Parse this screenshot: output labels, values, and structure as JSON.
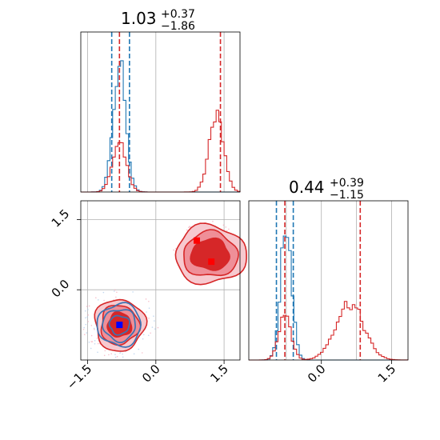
{
  "chart_data": [
    {
      "type": "histogram",
      "panel": "top-left",
      "title": {
        "value": "1.03",
        "plus": "+0.37",
        "minus": "−1.86"
      },
      "xlim": [
        -1.65,
        1.85
      ],
      "grid": true,
      "series": [
        {
          "name": "",
          "color": "#1f77b4",
          "center": -0.8,
          "sd": 0.14,
          "peak": 0.86,
          "quantiles": [
            -0.97,
            -0.58
          ]
        },
        {
          "name": "",
          "color": "#d62728",
          "components": [
            {
              "center": -0.8,
              "sd": 0.15,
              "peak": 0.33
            },
            {
              "center": 1.33,
              "sd": 0.16,
              "peak": 0.52
            }
          ],
          "quantiles": [
            -0.8,
            1.42
          ]
        }
      ]
    },
    {
      "type": "contour",
      "panel": "bottom-left",
      "xlim": [
        -1.65,
        1.85
      ],
      "ylim": [
        -1.5,
        1.9
      ],
      "xticks": [
        "−1.5",
        "0.0",
        "1.5"
      ],
      "yticks": [
        "1.5",
        "0.0"
      ],
      "grid": true,
      "series": [
        {
          "name": "",
          "color": "#1f77b4",
          "center": [
            -0.8,
            -0.75
          ],
          "marker": [
            -0.8,
            -0.75
          ]
        },
        {
          "name": "",
          "color": "#d62728",
          "centers": [
            [
              -0.8,
              -0.75
            ],
            [
              1.2,
              0.6
            ]
          ],
          "markers": [
            [
              0.9,
              1.05
            ],
            [
              1.22,
              0.6
            ]
          ]
        }
      ]
    },
    {
      "type": "histogram",
      "panel": "bottom-right",
      "title": {
        "value": "0.44",
        "plus": "+0.39",
        "minus": "−1.15"
      },
      "xlim": [
        -1.55,
        1.85
      ],
      "xticks": [
        "0.0",
        "1.5"
      ],
      "grid": true,
      "series": [
        {
          "name": "",
          "color": "#1f77b4",
          "center": -0.75,
          "sd": 0.12,
          "peak": 0.9,
          "quantiles": [
            -0.96,
            -0.6
          ]
        },
        {
          "name": "",
          "color": "#d62728",
          "components": [
            {
              "center": -0.78,
              "sd": 0.13,
              "peak": 0.32
            },
            {
              "center": 0.6,
              "sd": 0.3,
              "peak": 0.38
            }
          ],
          "quantiles": [
            -0.78,
            0.83
          ]
        }
      ]
    }
  ]
}
